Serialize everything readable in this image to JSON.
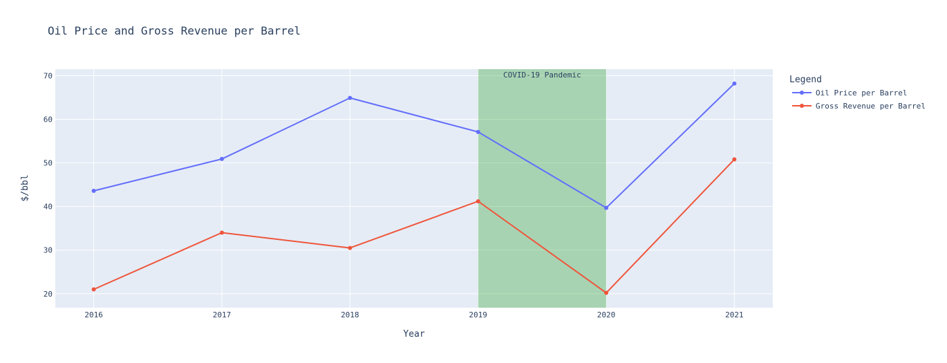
{
  "chart_data": {
    "type": "line",
    "title": "Oil Price and Gross Revenue per Barrel",
    "xlabel": "Year",
    "ylabel": "$/bbl",
    "x": [
      2016,
      2017,
      2018,
      2019,
      2020,
      2021
    ],
    "xlim": [
      2015.7,
      2021.3
    ],
    "ylim": [
      16.8,
      71.5
    ],
    "yticks": [
      20,
      30,
      40,
      50,
      60,
      70
    ],
    "grid": true,
    "legend_title": "Legend",
    "legend_position": "right",
    "series": [
      {
        "name": "Oil Price per Barrel",
        "color": "#636efa",
        "values": [
          43.6,
          50.9,
          64.9,
          57.1,
          39.7,
          68.2
        ]
      },
      {
        "name": "Gross Revenue per Barrel",
        "color": "#ef553b",
        "values": [
          21.0,
          34.0,
          30.5,
          41.2,
          20.2,
          50.8
        ]
      }
    ],
    "shaded_region": {
      "x0": 2019,
      "x1": 2020,
      "label": "COVID-19 Pandemic",
      "color": "#2ca02c",
      "opacity": 0.33
    },
    "plot_bgcolor": "#e5ecf6",
    "grid_color": "#ffffff"
  }
}
